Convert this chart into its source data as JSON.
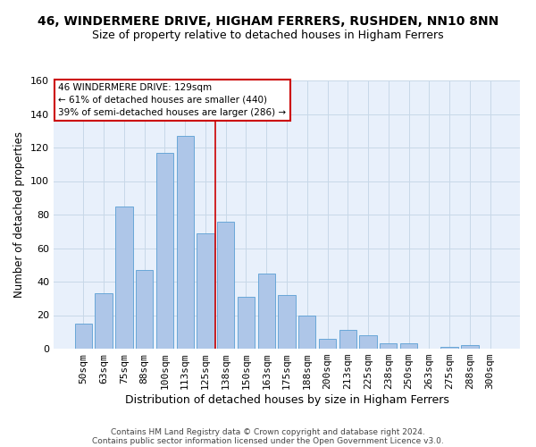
{
  "title": "46, WINDERMERE DRIVE, HIGHAM FERRERS, RUSHDEN, NN10 8NN",
  "subtitle": "Size of property relative to detached houses in Higham Ferrers",
  "xlabel": "Distribution of detached houses by size in Higham Ferrers",
  "ylabel": "Number of detached properties",
  "footer_line1": "Contains HM Land Registry data © Crown copyright and database right 2024.",
  "footer_line2": "Contains public sector information licensed under the Open Government Licence v3.0.",
  "bar_labels": [
    "50sqm",
    "63sqm",
    "75sqm",
    "88sqm",
    "100sqm",
    "113sqm",
    "125sqm",
    "138sqm",
    "150sqm",
    "163sqm",
    "175sqm",
    "188sqm",
    "200sqm",
    "213sqm",
    "225sqm",
    "238sqm",
    "250sqm",
    "263sqm",
    "275sqm",
    "288sqm",
    "300sqm"
  ],
  "bar_values": [
    15,
    33,
    85,
    47,
    117,
    127,
    69,
    76,
    31,
    45,
    32,
    20,
    6,
    11,
    8,
    3,
    3,
    0,
    1,
    2,
    0
  ],
  "bar_color": "#aec6e8",
  "bar_edge_color": "#5a9fd4",
  "red_line_x": 6.5,
  "annotation_line1": "46 WINDERMERE DRIVE: 129sqm",
  "annotation_line2": "← 61% of detached houses are smaller (440)",
  "annotation_line3": "39% of semi-detached houses are larger (286) →",
  "annotation_box_color": "#ffffff",
  "annotation_box_edge_color": "#cc0000",
  "ylim": [
    0,
    160
  ],
  "yticks": [
    0,
    20,
    40,
    60,
    80,
    100,
    120,
    140,
    160
  ],
  "grid_color": "#c8d8e8",
  "background_color": "#e8f0fb",
  "title_fontsize": 10,
  "subtitle_fontsize": 9,
  "xlabel_fontsize": 9,
  "ylabel_fontsize": 8.5,
  "tick_fontsize": 8,
  "annotation_fontsize": 7.5,
  "footer_fontsize": 6.5
}
